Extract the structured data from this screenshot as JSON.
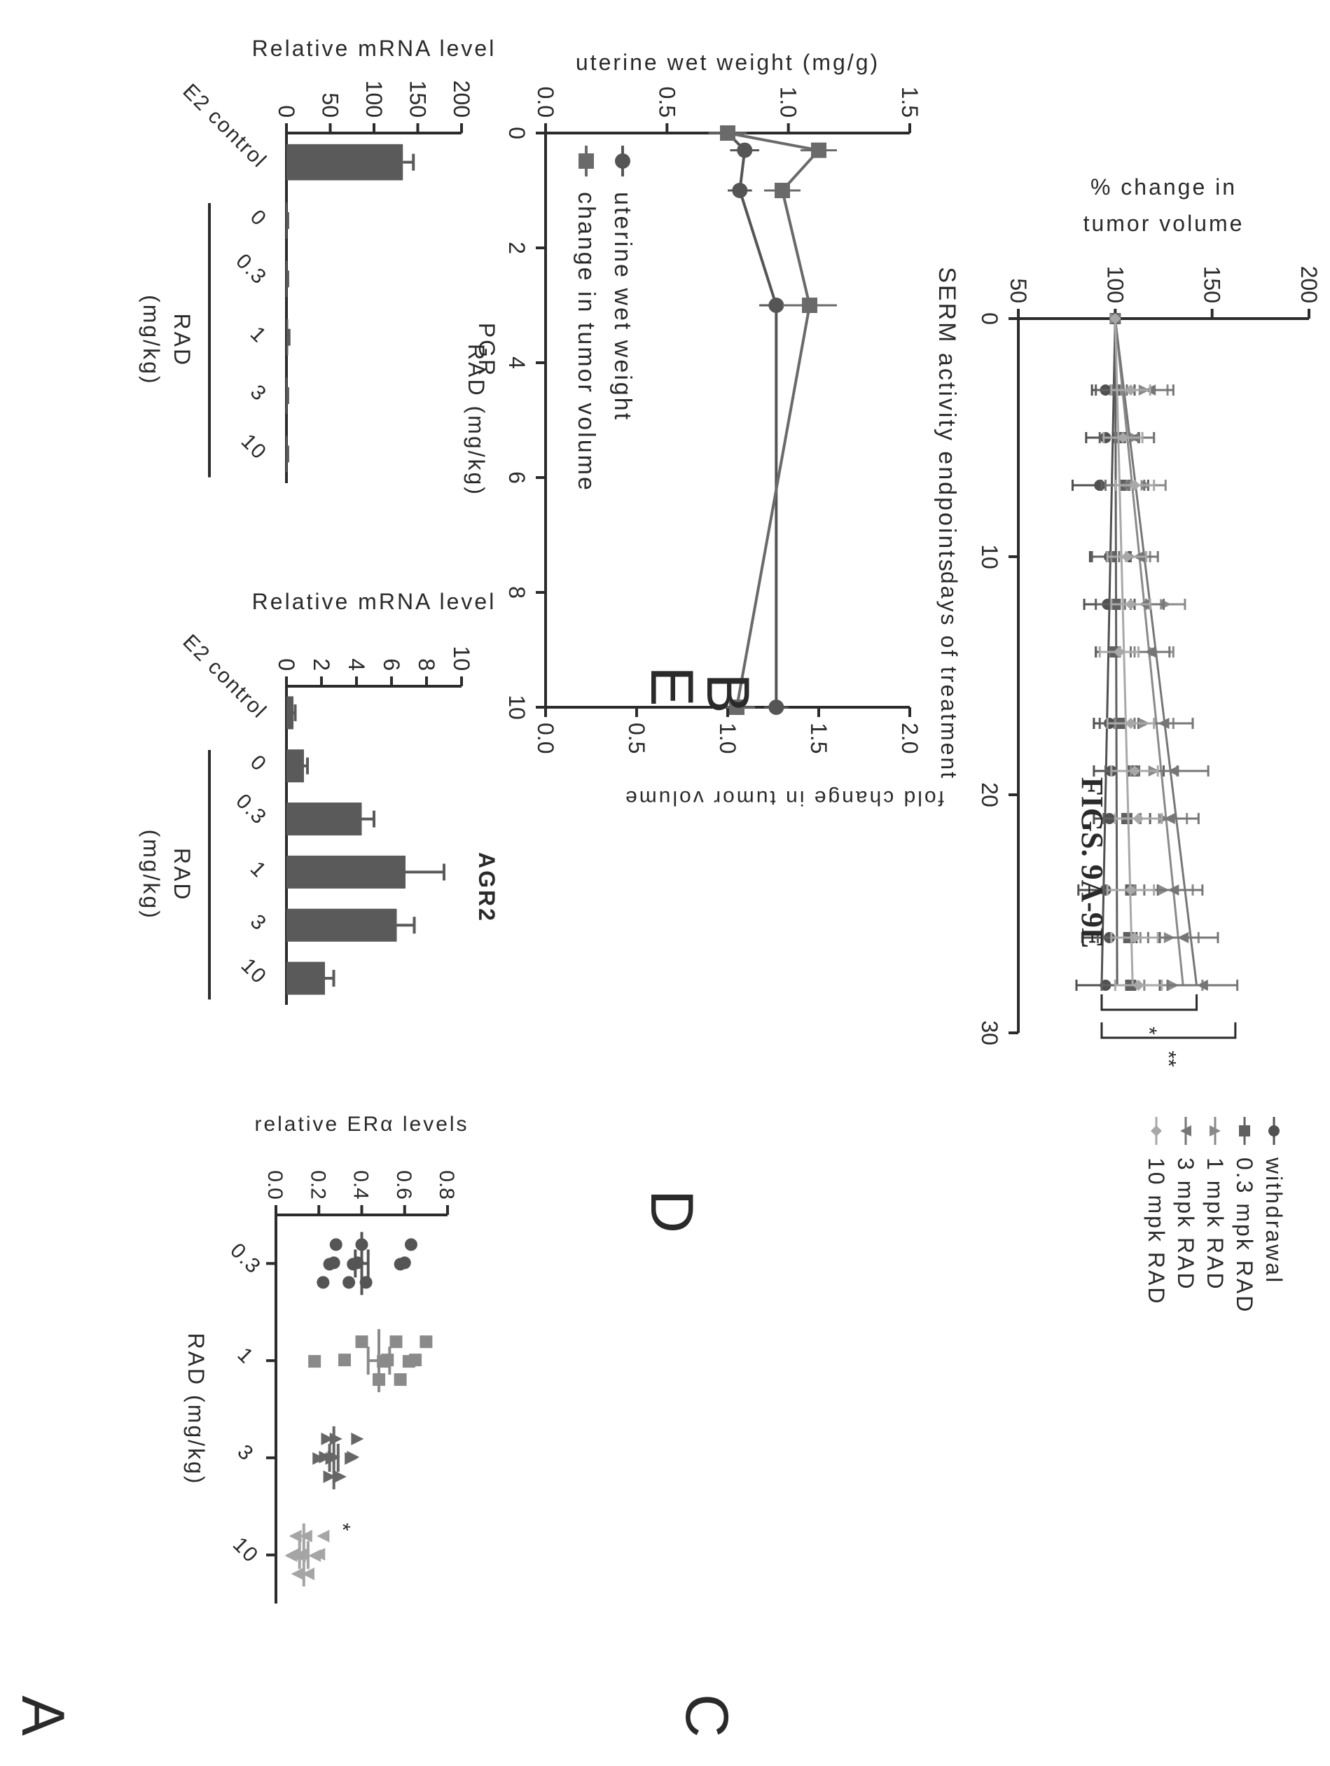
{
  "figure_caption": "FIGS. 9A-9E",
  "panels": {
    "A": {
      "letter": "A"
    },
    "B": {
      "letter": "B"
    },
    "C": {
      "letter": "C"
    },
    "D": {
      "letter": "D"
    },
    "E": {
      "letter": "E"
    }
  },
  "chart_data": [
    {
      "id": "A",
      "type": "line",
      "title": "",
      "ylabel_lines": [
        "% change in",
        "tumor volume"
      ],
      "xlabel": "days of treatment",
      "xlim": [
        0,
        30
      ],
      "ylim": [
        50,
        200
      ],
      "x_ticks": [
        "0",
        "10",
        "20",
        "30"
      ],
      "y_ticks": [
        "50",
        "100",
        "150",
        "200"
      ],
      "legend_position": "right",
      "series": [
        {
          "name": "withdrawal",
          "marker": "circle",
          "color": "#505050",
          "x": [
            0,
            3,
            5,
            7,
            10,
            12,
            14,
            17,
            19,
            21,
            24,
            26,
            28
          ],
          "y": [
            100,
            95,
            95,
            92,
            97,
            96,
            100,
            97,
            98,
            97,
            95,
            97,
            95
          ],
          "err": [
            0,
            7,
            10,
            14,
            10,
            12,
            10,
            8,
            9,
            8,
            14,
            14,
            15
          ],
          "trend": [
            100,
            93
          ]
        },
        {
          "name": "0.3 mpk RAD",
          "marker": "square",
          "color": "#606060",
          "x": [
            0,
            3,
            5,
            7,
            10,
            12,
            14,
            17,
            19,
            21,
            24,
            26,
            28
          ],
          "y": [
            100,
            100,
            102,
            105,
            98,
            100,
            100,
            102,
            110,
            106,
            108,
            107,
            108
          ],
          "err": [
            0,
            10,
            10,
            12,
            10,
            10,
            10,
            10,
            15,
            12,
            14,
            16,
            15
          ],
          "trend": [
            100,
            101
          ]
        },
        {
          "name": "1 mpk RAD",
          "marker": "triangle-up",
          "color": "#8a8a8a",
          "x": [
            0,
            3,
            5,
            7,
            10,
            12,
            14,
            17,
            19,
            21,
            24,
            26,
            28
          ],
          "y": [
            100,
            115,
            110,
            116,
            108,
            126,
            120,
            115,
            120,
            125,
            125,
            128,
            130
          ],
          "err": [
            0,
            12,
            10,
            10,
            10,
            10,
            10,
            15,
            12,
            12,
            15,
            15,
            15
          ],
          "trend": [
            100,
            135
          ]
        },
        {
          "name": "3 mpk RAD",
          "marker": "triangle-down",
          "color": "#767676",
          "x": [
            0,
            3,
            5,
            7,
            10,
            12,
            14,
            17,
            19,
            21,
            24,
            26,
            28
          ],
          "y": [
            100,
            118,
            110,
            105,
            112,
            115,
            118,
            125,
            130,
            128,
            130,
            135,
            145
          ],
          "err": [
            0,
            12,
            10,
            10,
            10,
            10,
            10,
            15,
            18,
            15,
            15,
            18,
            18
          ],
          "trend": [
            100,
            142
          ]
        },
        {
          "name": "10 mpk RAD",
          "marker": "diamond",
          "color": "#a8a8a8",
          "x": [
            0,
            3,
            5,
            7,
            10,
            12,
            14,
            17,
            19,
            21,
            24,
            26,
            28
          ],
          "y": [
            100,
            108,
            104,
            110,
            106,
            108,
            102,
            108,
            110,
            112,
            108,
            110,
            112
          ],
          "err": [
            0,
            10,
            10,
            10,
            10,
            10,
            10,
            12,
            12,
            12,
            12,
            12,
            12
          ],
          "trend": [
            100,
            109
          ]
        }
      ],
      "significance": [
        {
          "label": "*",
          "from_y": 142,
          "to_y": 93
        },
        {
          "label": "**",
          "from_y": 162,
          "to_y": 93
        }
      ]
    },
    {
      "id": "B",
      "type": "line",
      "title": "SERM activity endpoints",
      "top_axis_label": "fold change in tumor volume",
      "ylabel": "uterine wet weight (mg/g)",
      "xlabel": "RAD (mg/kg)",
      "xlim": [
        0,
        10
      ],
      "ylim": [
        0.0,
        1.5
      ],
      "y2lim": [
        0.0,
        2.0
      ],
      "x_ticks": [
        "0",
        "2",
        "4",
        "6",
        "8",
        "10"
      ],
      "y_ticks": [
        "0.0",
        "0.5",
        "1.0",
        "1.5"
      ],
      "y2_ticks": [
        "0.0",
        "0.5",
        "1.0",
        "1.5",
        "2.0"
      ],
      "legend_position": "bottom-left",
      "series": [
        {
          "name": "uterine wet weight",
          "marker": "circle",
          "axis": "left",
          "x": [
            0,
            0.3,
            1,
            3,
            10
          ],
          "y": [
            0.75,
            0.82,
            0.8,
            0.95,
            0.95
          ],
          "err": [
            0.08,
            0.06,
            0.05,
            0.07,
            0.05
          ]
        },
        {
          "name": "change in tumor volume",
          "marker": "square",
          "axis": "right",
          "x": [
            0,
            0.3,
            1,
            3,
            10
          ],
          "y": [
            1.0,
            1.5,
            1.3,
            1.45,
            1.05
          ],
          "err": [
            0.1,
            0.1,
            0.1,
            0.15,
            0.1
          ]
        }
      ]
    },
    {
      "id": "C",
      "type": "bar",
      "title": "PGR",
      "ylabel": "Relative mRNA level",
      "categories": [
        "E2 control",
        "0",
        "0.3",
        "1",
        "3",
        "10"
      ],
      "values": [
        133,
        1,
        1,
        2,
        1,
        1
      ],
      "errors": [
        12,
        0.5,
        0.5,
        1,
        0.5,
        0.5
      ],
      "ylim": [
        0,
        200
      ],
      "y_ticks": [
        "0",
        "50",
        "100",
        "150",
        "200"
      ],
      "group_label_lines": [
        "RAD",
        "(mg/kg)"
      ]
    },
    {
      "id": "D",
      "type": "bar",
      "title": "AGR2",
      "ylabel": "Relative mRNA level",
      "categories": [
        "E2 control",
        "0",
        "0.3",
        "1",
        "3",
        "10"
      ],
      "values": [
        0.4,
        1.0,
        4.3,
        6.8,
        6.3,
        2.2
      ],
      "errors": [
        0.1,
        0.2,
        0.7,
        2.2,
        1.0,
        0.5
      ],
      "ylim": [
        0,
        10
      ],
      "y_ticks": [
        "0",
        "2",
        "4",
        "6",
        "8",
        "10"
      ],
      "group_label_lines": [
        "RAD",
        "(mg/kg)"
      ]
    },
    {
      "id": "E",
      "type": "scatter",
      "title": "",
      "ylabel": "relative ERα levels",
      "xlabel": "RAD (mg/kg)",
      "categories": [
        "0.3",
        "1",
        "3",
        "10"
      ],
      "ylim": [
        0.0,
        0.8
      ],
      "y_ticks": [
        "0.0",
        "0.2",
        "0.4",
        "0.6",
        "0.8"
      ],
      "groups": [
        {
          "category": "0.3",
          "marker": "circle",
          "color": "#555555",
          "points": [
            0.63,
            0.6,
            0.58,
            0.42,
            0.4,
            0.38,
            0.36,
            0.34,
            0.28,
            0.27,
            0.25,
            0.22
          ],
          "mean": 0.4,
          "sem": 0.03
        },
        {
          "category": "1",
          "marker": "square",
          "color": "#8a8a8a",
          "points": [
            0.7,
            0.65,
            0.62,
            0.58,
            0.56,
            0.52,
            0.5,
            0.48,
            0.4,
            0.32,
            0.18
          ],
          "mean": 0.48,
          "sem": 0.05
        },
        {
          "category": "3",
          "marker": "triangle-up",
          "color": "#666666",
          "points": [
            0.38,
            0.36,
            0.35,
            0.3,
            0.28,
            0.27,
            0.26,
            0.25,
            0.24,
            0.23,
            0.2
          ],
          "mean": 0.27,
          "sem": 0.02
        },
        {
          "category": "10",
          "marker": "triangle-down",
          "color": "#a5a5a5",
          "points": [
            0.22,
            0.2,
            0.18,
            0.15,
            0.14,
            0.12,
            0.11,
            0.1,
            0.09,
            0.08,
            0.07
          ],
          "mean": 0.13,
          "sem": 0.02,
          "annotation": "*"
        }
      ]
    }
  ]
}
